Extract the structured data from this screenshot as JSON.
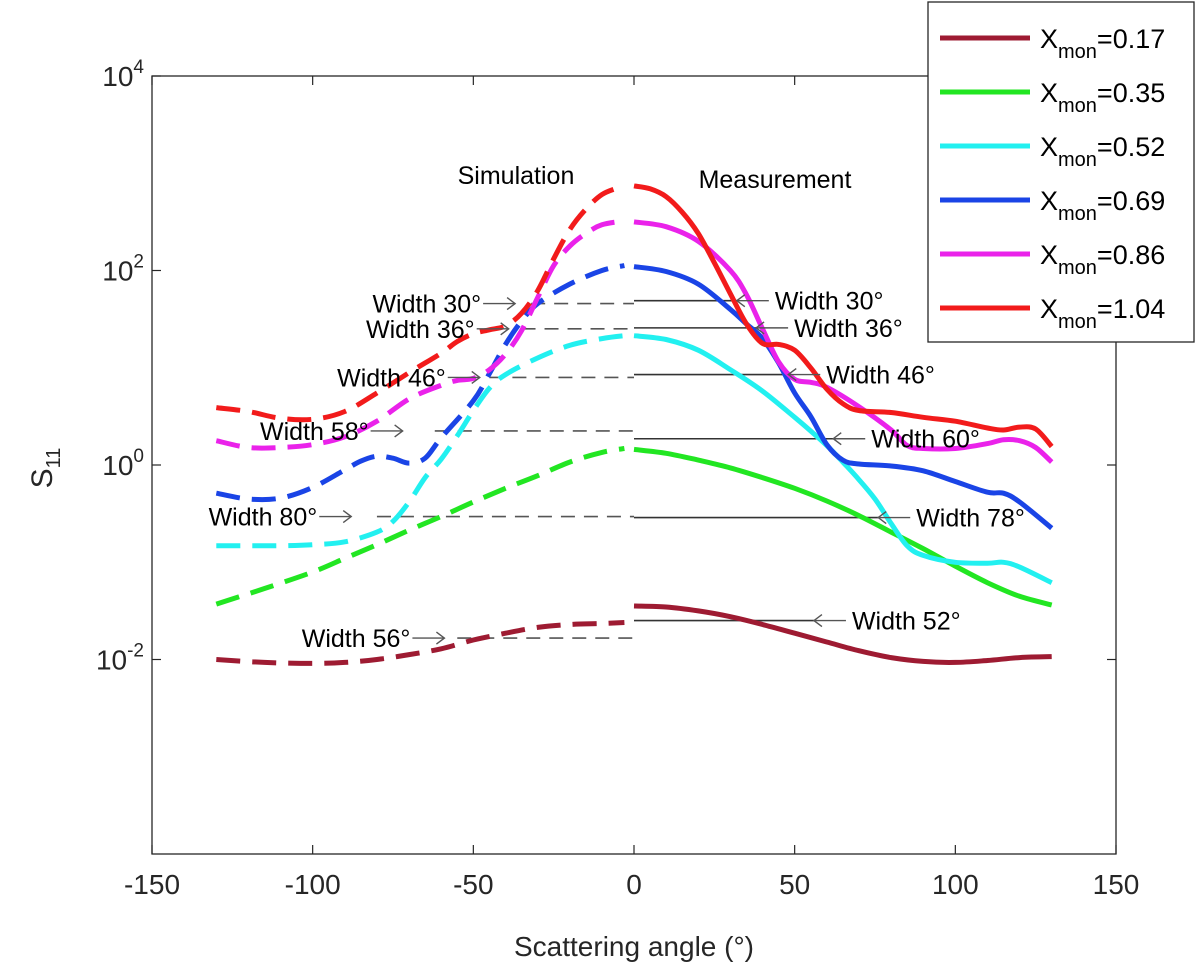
{
  "chart_data": {
    "type": "line",
    "title": "",
    "xlabel": "Scattering angle (°)",
    "ylabel": "S",
    "ylabel_sub": "11",
    "xlim": [
      -150,
      150
    ],
    "ylim_log10": [
      -4,
      4
    ],
    "y_scale": "log",
    "xticks": [
      -150,
      -100,
      -50,
      0,
      50,
      100,
      150
    ],
    "yticks": [
      {
        "base": "10",
        "exp": "-2",
        "log10": -2
      },
      {
        "base": "10",
        "exp": "0",
        "log10": 0
      },
      {
        "base": "10",
        "exp": "2",
        "log10": 2
      },
      {
        "base": "10",
        "exp": "4",
        "log10": 4
      }
    ],
    "grid": false,
    "legend_position": "top-right",
    "region_labels": {
      "left": "Simulation",
      "right": "Measurement"
    },
    "series": [
      {
        "name_base": "X",
        "name_sub": "mon",
        "name_value": "=0.17",
        "color": "#9e1b32",
        "simulation": [
          [
            -130,
            -2.0
          ],
          [
            -115,
            -2.03
          ],
          [
            -100,
            -2.04
          ],
          [
            -90,
            -2.03
          ],
          [
            -80,
            -2.0
          ],
          [
            -70,
            -1.95
          ],
          [
            -60,
            -1.89
          ],
          [
            -50,
            -1.8
          ],
          [
            -40,
            -1.73
          ],
          [
            -30,
            -1.67
          ],
          [
            -20,
            -1.64
          ],
          [
            -10,
            -1.63
          ],
          [
            -3,
            -1.62
          ]
        ],
        "measurement": [
          [
            0,
            -1.45
          ],
          [
            10,
            -1.46
          ],
          [
            20,
            -1.5
          ],
          [
            30,
            -1.56
          ],
          [
            40,
            -1.64
          ],
          [
            50,
            -1.73
          ],
          [
            60,
            -1.82
          ],
          [
            70,
            -1.91
          ],
          [
            80,
            -1.98
          ],
          [
            90,
            -2.02
          ],
          [
            100,
            -2.03
          ],
          [
            110,
            -2.01
          ],
          [
            120,
            -1.98
          ],
          [
            130,
            -1.97
          ]
        ]
      },
      {
        "name_base": "X",
        "name_sub": "mon",
        "name_value": "=0.35",
        "color": "#22e622",
        "simulation": [
          [
            -130,
            -1.43
          ],
          [
            -115,
            -1.27
          ],
          [
            -100,
            -1.1
          ],
          [
            -90,
            -0.96
          ],
          [
            -80,
            -0.82
          ],
          [
            -70,
            -0.67
          ],
          [
            -60,
            -0.53
          ],
          [
            -50,
            -0.38
          ],
          [
            -40,
            -0.24
          ],
          [
            -30,
            -0.11
          ],
          [
            -20,
            0.03
          ],
          [
            -10,
            0.13
          ],
          [
            -3,
            0.17
          ]
        ],
        "measurement": [
          [
            0,
            0.16
          ],
          [
            10,
            0.12
          ],
          [
            20,
            0.05
          ],
          [
            30,
            -0.03
          ],
          [
            40,
            -0.13
          ],
          [
            50,
            -0.24
          ],
          [
            60,
            -0.37
          ],
          [
            70,
            -0.52
          ],
          [
            80,
            -0.69
          ],
          [
            90,
            -0.86
          ],
          [
            100,
            -1.04
          ],
          [
            110,
            -1.21
          ],
          [
            120,
            -1.35
          ],
          [
            130,
            -1.44
          ]
        ]
      },
      {
        "name_base": "X",
        "name_sub": "mon",
        "name_value": "=0.52",
        "color": "#22f0f0",
        "simulation": [
          [
            -130,
            -0.83
          ],
          [
            -120,
            -0.83
          ],
          [
            -110,
            -0.83
          ],
          [
            -100,
            -0.82
          ],
          [
            -90,
            -0.79
          ],
          [
            -80,
            -0.69
          ],
          [
            -75,
            -0.58
          ],
          [
            -70,
            -0.38
          ],
          [
            -65,
            -0.13
          ],
          [
            -60,
            0.06
          ],
          [
            -55,
            0.3
          ],
          [
            -50,
            0.56
          ],
          [
            -45,
            0.79
          ],
          [
            -40,
            0.93
          ],
          [
            -30,
            1.1
          ],
          [
            -20,
            1.23
          ],
          [
            -10,
            1.3
          ],
          [
            -3,
            1.33
          ]
        ],
        "measurement": [
          [
            0,
            1.33
          ],
          [
            10,
            1.29
          ],
          [
            20,
            1.18
          ],
          [
            30,
            0.98
          ],
          [
            40,
            0.76
          ],
          [
            50,
            0.49
          ],
          [
            55,
            0.35
          ],
          [
            60,
            0.2
          ],
          [
            65,
            0.03
          ],
          [
            70,
            -0.15
          ],
          [
            75,
            -0.35
          ],
          [
            80,
            -0.6
          ],
          [
            85,
            -0.83
          ],
          [
            90,
            -0.93
          ],
          [
            100,
            -1.0
          ],
          [
            110,
            -1.01
          ],
          [
            115,
            -1.0
          ],
          [
            120,
            -1.05
          ],
          [
            130,
            -1.21
          ]
        ]
      },
      {
        "name_base": "X",
        "name_sub": "mon",
        "name_value": "=0.69",
        "color": "#1a44e6",
        "simulation": [
          [
            -130,
            -0.29
          ],
          [
            -120,
            -0.35
          ],
          [
            -110,
            -0.34
          ],
          [
            -100,
            -0.23
          ],
          [
            -90,
            -0.05
          ],
          [
            -85,
            0.04
          ],
          [
            -80,
            0.09
          ],
          [
            -75,
            0.07
          ],
          [
            -70,
            0.02
          ],
          [
            -65,
            0.07
          ],
          [
            -60,
            0.28
          ],
          [
            -50,
            0.66
          ],
          [
            -45,
            0.94
          ],
          [
            -40,
            1.24
          ],
          [
            -35,
            1.48
          ],
          [
            -30,
            1.66
          ],
          [
            -20,
            1.86
          ],
          [
            -10,
            2.0
          ],
          [
            -3,
            2.05
          ]
        ],
        "measurement": [
          [
            0,
            2.04
          ],
          [
            10,
            1.99
          ],
          [
            20,
            1.86
          ],
          [
            30,
            1.6
          ],
          [
            35,
            1.45
          ],
          [
            40,
            1.3
          ],
          [
            45,
            1.05
          ],
          [
            50,
            0.74
          ],
          [
            55,
            0.5
          ],
          [
            60,
            0.21
          ],
          [
            65,
            0.05
          ],
          [
            70,
            0.01
          ],
          [
            80,
            -0.01
          ],
          [
            90,
            -0.06
          ],
          [
            100,
            -0.17
          ],
          [
            110,
            -0.28
          ],
          [
            115,
            -0.29
          ],
          [
            120,
            -0.38
          ],
          [
            130,
            -0.65
          ]
        ]
      },
      {
        "name_base": "X",
        "name_sub": "mon",
        "name_value": "=0.86",
        "color": "#ea22ea",
        "simulation": [
          [
            -130,
            0.25
          ],
          [
            -120,
            0.18
          ],
          [
            -110,
            0.18
          ],
          [
            -100,
            0.21
          ],
          [
            -90,
            0.29
          ],
          [
            -80,
            0.45
          ],
          [
            -70,
            0.68
          ],
          [
            -60,
            0.82
          ],
          [
            -55,
            0.87
          ],
          [
            -50,
            0.89
          ],
          [
            -45,
            0.98
          ],
          [
            -40,
            1.14
          ],
          [
            -35,
            1.38
          ],
          [
            -30,
            1.72
          ],
          [
            -25,
            2.05
          ],
          [
            -20,
            2.25
          ],
          [
            -15,
            2.38
          ],
          [
            -10,
            2.47
          ],
          [
            -3,
            2.51
          ]
        ],
        "measurement": [
          [
            0,
            2.5
          ],
          [
            10,
            2.45
          ],
          [
            20,
            2.3
          ],
          [
            30,
            2.0
          ],
          [
            35,
            1.75
          ],
          [
            40,
            1.4
          ],
          [
            45,
            1.06
          ],
          [
            50,
            0.88
          ],
          [
            55,
            0.85
          ],
          [
            60,
            0.8
          ],
          [
            70,
            0.6
          ],
          [
            80,
            0.36
          ],
          [
            85,
            0.2
          ],
          [
            90,
            0.17
          ],
          [
            100,
            0.17
          ],
          [
            110,
            0.22
          ],
          [
            115,
            0.26
          ],
          [
            120,
            0.25
          ],
          [
            125,
            0.18
          ],
          [
            130,
            0.03
          ]
        ]
      },
      {
        "name_base": "X",
        "name_sub": "mon",
        "name_value": "=1.04",
        "color": "#f21b1b",
        "simulation": [
          [
            -130,
            0.59
          ],
          [
            -120,
            0.55
          ],
          [
            -110,
            0.48
          ],
          [
            -100,
            0.47
          ],
          [
            -90,
            0.55
          ],
          [
            -80,
            0.74
          ],
          [
            -70,
            0.95
          ],
          [
            -60,
            1.15
          ],
          [
            -55,
            1.27
          ],
          [
            -50,
            1.35
          ],
          [
            -45,
            1.39
          ],
          [
            -40,
            1.43
          ],
          [
            -35,
            1.56
          ],
          [
            -30,
            1.79
          ],
          [
            -25,
            2.12
          ],
          [
            -20,
            2.42
          ],
          [
            -15,
            2.63
          ],
          [
            -10,
            2.78
          ],
          [
            -5,
            2.85
          ],
          [
            -3,
            2.87
          ]
        ],
        "measurement": [
          [
            0,
            2.87
          ],
          [
            5,
            2.84
          ],
          [
            10,
            2.76
          ],
          [
            15,
            2.6
          ],
          [
            20,
            2.38
          ],
          [
            25,
            2.08
          ],
          [
            30,
            1.76
          ],
          [
            35,
            1.45
          ],
          [
            40,
            1.25
          ],
          [
            45,
            1.24
          ],
          [
            50,
            1.18
          ],
          [
            55,
            1.0
          ],
          [
            60,
            0.78
          ],
          [
            65,
            0.63
          ],
          [
            70,
            0.56
          ],
          [
            80,
            0.54
          ],
          [
            90,
            0.49
          ],
          [
            100,
            0.45
          ],
          [
            110,
            0.38
          ],
          [
            115,
            0.36
          ],
          [
            120,
            0.39
          ],
          [
            125,
            0.37
          ],
          [
            130,
            0.19
          ]
        ]
      }
    ],
    "annotations": [
      {
        "label": "Width 30°",
        "side": "left",
        "arrow_tip": [
          -37,
          1.66
        ]
      },
      {
        "label": "Width 36°",
        "side": "left",
        "arrow_tip": [
          -39,
          1.4
        ]
      },
      {
        "label": "Width 46°",
        "side": "left",
        "arrow_tip": [
          -48,
          0.9
        ]
      },
      {
        "label": "Width 58°",
        "side": "left",
        "arrow_tip": [
          -72,
          0.35
        ]
      },
      {
        "label": "Width 80°",
        "side": "left",
        "arrow_tip": [
          -88,
          -0.53
        ]
      },
      {
        "label": "Width 56°",
        "side": "left",
        "arrow_tip": [
          -59,
          -1.78
        ]
      },
      {
        "label": "Width 30°",
        "side": "right",
        "arrow_tip": [
          32,
          1.69
        ]
      },
      {
        "label": "Width 36°",
        "side": "right",
        "arrow_tip": [
          38,
          1.41
        ]
      },
      {
        "label": "Width 46°",
        "side": "right",
        "arrow_tip": [
          48,
          0.93
        ]
      },
      {
        "label": "Width 60°",
        "side": "right",
        "arrow_tip": [
          62,
          0.27
        ]
      },
      {
        "label": "Width 78°",
        "side": "right",
        "arrow_tip": [
          76,
          -0.54
        ]
      },
      {
        "label": "Width 52°",
        "side": "right",
        "arrow_tip": [
          56,
          -1.6
        ]
      }
    ],
    "reference_lines": [
      {
        "type": "dashed",
        "x_range": [
          -55,
          0
        ],
        "y": -1.78
      },
      {
        "type": "dashed",
        "x_range": [
          -80,
          0
        ],
        "y": -0.53
      },
      {
        "type": "dashed",
        "x_range": [
          -62,
          0
        ],
        "y": 0.35
      },
      {
        "type": "dashed",
        "x_range": [
          -45,
          0
        ],
        "y": 0.9
      },
      {
        "type": "dashed",
        "x_range": [
          -35,
          0
        ],
        "y": 1.4
      },
      {
        "type": "dashed",
        "x_range": [
          -32,
          0
        ],
        "y": 1.66
      },
      {
        "type": "solid",
        "x_range": [
          0,
          56
        ],
        "y": -1.6
      },
      {
        "type": "solid",
        "x_range": [
          0,
          76
        ],
        "y": -0.54
      },
      {
        "type": "solid",
        "x_range": [
          0,
          62
        ],
        "y": 0.27
      },
      {
        "type": "solid",
        "x_range": [
          0,
          48
        ],
        "y": 0.93
      },
      {
        "type": "solid",
        "x_range": [
          0,
          38
        ],
        "y": 1.41
      },
      {
        "type": "solid",
        "x_range": [
          0,
          32
        ],
        "y": 1.69
      }
    ]
  }
}
